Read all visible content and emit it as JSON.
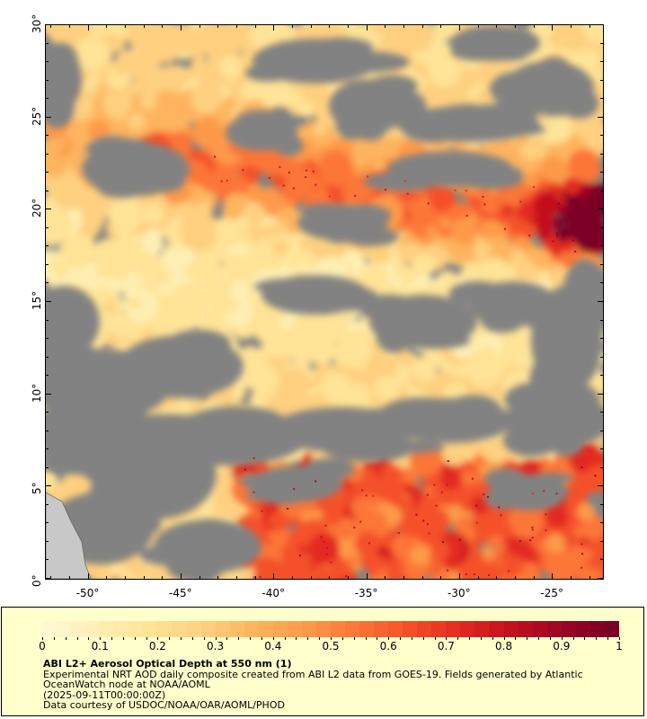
{
  "map": {
    "lat_labels": [
      "0°",
      "5°",
      "10°",
      "15°",
      "20°",
      "25°",
      "30°"
    ],
    "lon_labels": [
      "-50°",
      "-45°",
      "-40°",
      "-35°",
      "-30°",
      "-25°"
    ],
    "lat_range": [
      0,
      30
    ],
    "lon_range": [
      -52.3,
      -22.3
    ],
    "colors": {
      "cloud": "#828282",
      "land": "#c8c8c8",
      "frame": "#000000"
    }
  },
  "legend": {
    "colorbar_labels": [
      "0",
      "0.1",
      "0.2",
      "0.3",
      "0.4",
      "0.5",
      "0.6",
      "0.7",
      "0.8",
      "0.9",
      "1"
    ],
    "colorbar_range": [
      0,
      1
    ],
    "colors": [
      "#fff7d2",
      "#ffefb4",
      "#ffe396",
      "#fed080",
      "#feb45e",
      "#fd9a4a",
      "#fc7638",
      "#f4512a",
      "#e22b20",
      "#c4101f",
      "#9c0526",
      "#7a0026"
    ],
    "title": "ABI L2+ Aerosol Optical Depth at 550 nm (1)",
    "line1": "Experimental NRT AOD daily composite created from ABI L2 data from GOES-19. Fields generated by Atlantic",
    "line2": "OceanWatch node at NOAA/AOML",
    "line3": "(2025-09-11T00:00:00Z)",
    "line4": "Data courtesy of USDOC/NOAA/OAR/AOML/PHOD"
  }
}
